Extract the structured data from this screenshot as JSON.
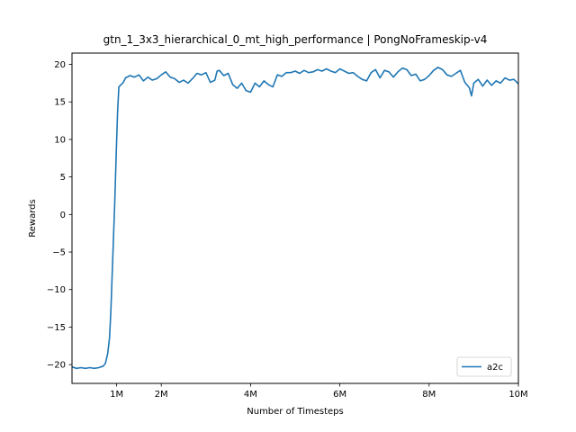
{
  "chart_data": {
    "type": "line",
    "title": "gtn_1_3x3_hierarchical_0_mt_high_performance | PongNoFrameskip-v4",
    "xlabel": "Number of Timesteps",
    "ylabel": "Rewards",
    "xlim": [
      0,
      10000000
    ],
    "ylim": [
      -22.5,
      21.5
    ],
    "xticks": [
      {
        "value": 1000000,
        "label": "1M"
      },
      {
        "value": 2000000,
        "label": "2M"
      },
      {
        "value": 4000000,
        "label": "4M"
      },
      {
        "value": 6000000,
        "label": "6M"
      },
      {
        "value": 8000000,
        "label": "8M"
      },
      {
        "value": 10000000,
        "label": "10M"
      }
    ],
    "yticks": [
      {
        "value": 20,
        "label": "20"
      },
      {
        "value": 15,
        "label": "15"
      },
      {
        "value": 10,
        "label": "10"
      },
      {
        "value": 5,
        "label": "5"
      },
      {
        "value": 0,
        "label": "0"
      },
      {
        "value": -5,
        "label": "−5"
      },
      {
        "value": -10,
        "label": "−10"
      },
      {
        "value": -15,
        "label": "−15"
      },
      {
        "value": -20,
        "label": "−20"
      }
    ],
    "grid": false,
    "legend_position": "lower-right",
    "series": [
      {
        "name": "a2c",
        "color": "#1f77b4",
        "points": [
          [
            0,
            -20.3
          ],
          [
            100000,
            -20.5
          ],
          [
            200000,
            -20.4
          ],
          [
            300000,
            -20.5
          ],
          [
            400000,
            -20.4
          ],
          [
            500000,
            -20.5
          ],
          [
            600000,
            -20.4
          ],
          [
            700000,
            -20.2
          ],
          [
            750000,
            -19.8
          ],
          [
            800000,
            -18.5
          ],
          [
            840000,
            -16.5
          ],
          [
            870000,
            -13.0
          ],
          [
            900000,
            -8.0
          ],
          [
            930000,
            -3.0
          ],
          [
            960000,
            2.0
          ],
          [
            990000,
            8.0
          ],
          [
            1020000,
            13.5
          ],
          [
            1050000,
            17.0
          ],
          [
            1100000,
            17.3
          ],
          [
            1150000,
            17.6
          ],
          [
            1200000,
            18.2
          ],
          [
            1300000,
            18.5
          ],
          [
            1400000,
            18.3
          ],
          [
            1500000,
            18.6
          ],
          [
            1600000,
            17.8
          ],
          [
            1700000,
            18.3
          ],
          [
            1800000,
            17.9
          ],
          [
            1900000,
            18.1
          ],
          [
            2000000,
            18.6
          ],
          [
            2100000,
            19.0
          ],
          [
            2200000,
            18.3
          ],
          [
            2300000,
            18.1
          ],
          [
            2400000,
            17.6
          ],
          [
            2500000,
            17.9
          ],
          [
            2600000,
            17.5
          ],
          [
            2700000,
            18.1
          ],
          [
            2800000,
            18.8
          ],
          [
            2900000,
            18.6
          ],
          [
            3000000,
            18.9
          ],
          [
            3100000,
            17.6
          ],
          [
            3200000,
            17.9
          ],
          [
            3250000,
            19.1
          ],
          [
            3300000,
            19.2
          ],
          [
            3400000,
            18.5
          ],
          [
            3500000,
            18.8
          ],
          [
            3600000,
            17.3
          ],
          [
            3700000,
            16.8
          ],
          [
            3800000,
            17.5
          ],
          [
            3900000,
            16.5
          ],
          [
            4000000,
            16.3
          ],
          [
            4100000,
            17.5
          ],
          [
            4200000,
            17.0
          ],
          [
            4300000,
            17.8
          ],
          [
            4400000,
            17.3
          ],
          [
            4500000,
            17.0
          ],
          [
            4600000,
            18.6
          ],
          [
            4700000,
            18.4
          ],
          [
            4800000,
            18.9
          ],
          [
            4900000,
            18.9
          ],
          [
            5000000,
            19.1
          ],
          [
            5100000,
            18.8
          ],
          [
            5200000,
            19.2
          ],
          [
            5300000,
            18.9
          ],
          [
            5400000,
            19.0
          ],
          [
            5500000,
            19.3
          ],
          [
            5600000,
            19.1
          ],
          [
            5700000,
            19.4
          ],
          [
            5800000,
            19.1
          ],
          [
            5900000,
            18.9
          ],
          [
            6000000,
            19.4
          ],
          [
            6100000,
            19.1
          ],
          [
            6200000,
            18.8
          ],
          [
            6300000,
            18.9
          ],
          [
            6400000,
            18.4
          ],
          [
            6500000,
            18.0
          ],
          [
            6600000,
            17.8
          ],
          [
            6700000,
            18.9
          ],
          [
            6800000,
            19.3
          ],
          [
            6900000,
            18.2
          ],
          [
            7000000,
            19.2
          ],
          [
            7100000,
            19.0
          ],
          [
            7200000,
            18.3
          ],
          [
            7300000,
            19.0
          ],
          [
            7400000,
            19.5
          ],
          [
            7500000,
            19.3
          ],
          [
            7600000,
            18.5
          ],
          [
            7700000,
            18.7
          ],
          [
            7800000,
            17.8
          ],
          [
            7900000,
            18.0
          ],
          [
            8000000,
            18.5
          ],
          [
            8100000,
            19.2
          ],
          [
            8200000,
            19.6
          ],
          [
            8300000,
            19.3
          ],
          [
            8400000,
            18.6
          ],
          [
            8500000,
            18.4
          ],
          [
            8600000,
            18.8
          ],
          [
            8700000,
            19.2
          ],
          [
            8800000,
            17.6
          ],
          [
            8900000,
            16.9
          ],
          [
            8950000,
            15.8
          ],
          [
            9000000,
            17.5
          ],
          [
            9100000,
            18.0
          ],
          [
            9200000,
            17.1
          ],
          [
            9300000,
            17.9
          ],
          [
            9400000,
            17.2
          ],
          [
            9500000,
            17.8
          ],
          [
            9600000,
            17.5
          ],
          [
            9700000,
            18.2
          ],
          [
            9800000,
            17.9
          ],
          [
            9900000,
            18.0
          ],
          [
            10000000,
            17.4
          ]
        ]
      }
    ]
  }
}
